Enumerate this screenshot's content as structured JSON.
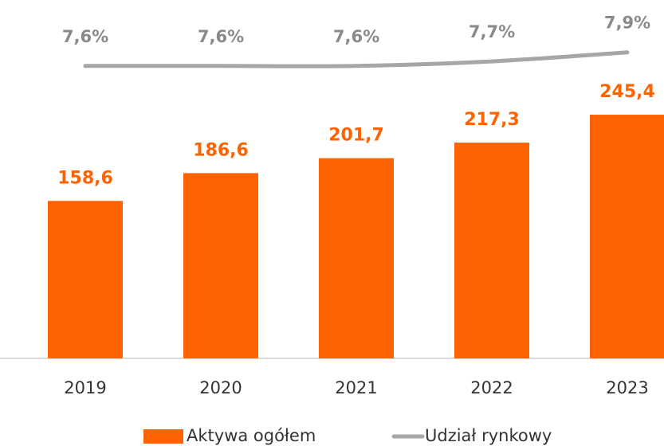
{
  "chart_data": {
    "type": "bar",
    "categories": [
      "2019",
      "2020",
      "2021",
      "2022",
      "2023"
    ],
    "series": [
      {
        "name": "Aktywa ogółem",
        "type": "bar",
        "color": "#ff6200",
        "values": [
          158.6,
          186.6,
          201.7,
          217.3,
          245.4
        ],
        "value_labels": [
          "158,6",
          "186,6",
          "201,7",
          "217,3",
          "245,4"
        ]
      },
      {
        "name": "Udział rynkowy",
        "type": "line",
        "axis": "y2",
        "color": "#a6a6a6",
        "values": [
          7.6,
          7.6,
          7.6,
          7.7,
          7.9
        ],
        "value_labels": [
          "7,6%",
          "7,6%",
          "7,6%",
          "7,7%",
          "7,9%"
        ]
      }
    ],
    "ylim": [
      0,
      300
    ],
    "y2lim": [
      7,
      8
    ],
    "legend": "bottom"
  }
}
